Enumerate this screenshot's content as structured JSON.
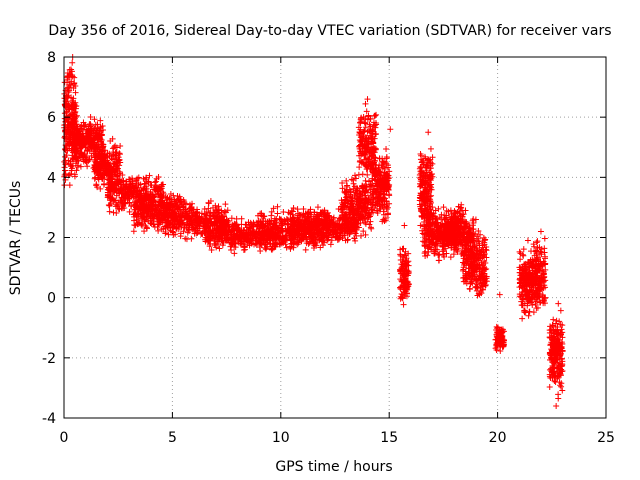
{
  "chart_data": {
    "type": "scatter",
    "title": "Day 356 of 2016, Sidereal Day-to-day VTEC variation (SDTVAR) for receiver vars",
    "xlabel": "GPS time / hours",
    "ylabel": "SDTVAR / TECUs",
    "xlim": [
      0,
      25
    ],
    "ylim": [
      -4,
      8
    ],
    "xticks": [
      0,
      5,
      10,
      15,
      20,
      25
    ],
    "yticks": [
      -4,
      -2,
      0,
      2,
      4,
      6,
      8
    ],
    "xtick_labels": [
      "0",
      "5",
      "10",
      "15",
      "20",
      "25"
    ],
    "ytick_labels": [
      "-4",
      "-2",
      "0",
      "2",
      "4",
      "6",
      "8"
    ],
    "grid": true,
    "marker": "plus",
    "series_color": "#ff0000",
    "series": [
      {
        "name": "SDTVAR",
        "trace": [
          [
            0.0,
            3.4
          ],
          [
            0.05,
            5.5
          ],
          [
            0.1,
            6.8
          ],
          [
            0.2,
            7.1
          ],
          [
            0.3,
            7.4
          ],
          [
            0.4,
            7.8
          ],
          [
            0.5,
            5.5
          ],
          [
            0.6,
            4.5
          ],
          [
            0.8,
            5.2
          ],
          [
            1.0,
            4.8
          ],
          [
            1.2,
            5.5
          ],
          [
            1.4,
            5.2
          ],
          [
            1.6,
            5.0
          ],
          [
            1.8,
            4.6
          ],
          [
            2.0,
            4.2
          ],
          [
            2.2,
            3.8
          ],
          [
            2.5,
            3.7
          ],
          [
            2.8,
            3.5
          ],
          [
            3.0,
            3.6
          ],
          [
            3.3,
            3.4
          ],
          [
            3.6,
            3.2
          ],
          [
            4.0,
            3.0
          ],
          [
            4.2,
            2.6
          ],
          [
            4.5,
            2.8
          ],
          [
            4.8,
            3.0
          ],
          [
            5.0,
            2.9
          ],
          [
            5.3,
            3.1
          ],
          [
            5.6,
            2.8
          ],
          [
            6.0,
            2.6
          ],
          [
            6.3,
            2.5
          ],
          [
            6.6,
            2.4
          ],
          [
            7.0,
            2.2
          ],
          [
            7.3,
            2.4
          ],
          [
            7.6,
            2.0
          ],
          [
            8.0,
            2.2
          ],
          [
            8.3,
            1.9
          ],
          [
            8.6,
            2.1
          ],
          [
            9.0,
            2.2
          ],
          [
            9.3,
            1.8
          ],
          [
            9.6,
            1.9
          ],
          [
            10.0,
            2.1
          ],
          [
            10.3,
            2.3
          ],
          [
            10.6,
            2.0
          ],
          [
            11.0,
            2.3
          ],
          [
            11.3,
            2.1
          ],
          [
            11.6,
            2.4
          ],
          [
            12.0,
            2.6
          ],
          [
            12.3,
            2.4
          ],
          [
            12.6,
            2.2
          ],
          [
            13.0,
            2.5
          ],
          [
            13.3,
            2.7
          ],
          [
            13.6,
            2.6
          ],
          [
            13.9,
            3.2
          ],
          [
            14.0,
            4.0
          ],
          [
            14.1,
            5.6
          ],
          [
            14.2,
            5.2
          ],
          [
            14.4,
            3.8
          ],
          [
            14.6,
            3.2
          ],
          [
            14.8,
            3.6
          ],
          [
            15.0,
            4.2
          ],
          [
            15.7,
            0.5
          ],
          [
            16.6,
            3.3
          ],
          [
            16.8,
            2.6
          ],
          [
            17.0,
            2.3
          ],
          [
            17.2,
            2.4
          ],
          [
            17.5,
            1.8
          ],
          [
            17.8,
            2.2
          ],
          [
            18.0,
            2.6
          ],
          [
            18.3,
            2.8
          ],
          [
            18.6,
            2.2
          ],
          [
            18.8,
            1.4
          ],
          [
            19.0,
            0.6
          ],
          [
            19.1,
            0.4
          ],
          [
            19.3,
            0.5
          ],
          [
            19.5,
            0.7
          ],
          [
            20.1,
            -1.5
          ],
          [
            21.2,
            0.8
          ],
          [
            21.4,
            0.6
          ],
          [
            21.6,
            0.4
          ],
          [
            21.8,
            0.2
          ],
          [
            22.0,
            0.3
          ],
          [
            22.6,
            -1.8
          ],
          [
            22.8,
            -1.2
          ]
        ],
        "clusters": [
          {
            "x": [
              0.0,
              0.6
            ],
            "y": [
              3.2,
              8.0
            ],
            "n": 220
          },
          {
            "x": [
              0.4,
              1.8
            ],
            "y": [
              4.2,
              6.2
            ],
            "n": 240
          },
          {
            "x": [
              1.4,
              2.6
            ],
            "y": [
              3.4,
              5.4
            ],
            "n": 200
          },
          {
            "x": [
              2.0,
              4.6
            ],
            "y": [
              2.6,
              4.3
            ],
            "n": 260
          },
          {
            "x": [
              3.2,
              5.2
            ],
            "y": [
              2.0,
              3.6
            ],
            "n": 200
          },
          {
            "x": [
              4.6,
              7.6
            ],
            "y": [
              1.8,
              3.4
            ],
            "n": 280
          },
          {
            "x": [
              6.5,
              9.8
            ],
            "y": [
              1.4,
              2.8
            ],
            "n": 300
          },
          {
            "x": [
              9.0,
              12.2
            ],
            "y": [
              1.4,
              3.2
            ],
            "n": 300
          },
          {
            "x": [
              10.5,
              13.5
            ],
            "y": [
              1.6,
              3.1
            ],
            "n": 280
          },
          {
            "x": [
              12.8,
              14.2
            ],
            "y": [
              1.8,
              4.4
            ],
            "n": 240
          },
          {
            "x": [
              13.6,
              14.4
            ],
            "y": [
              3.6,
              6.6
            ],
            "n": 180
          },
          {
            "x": [
              14.2,
              15.0
            ],
            "y": [
              2.2,
              5.2
            ],
            "n": 200
          },
          {
            "x": [
              15.5,
              15.9
            ],
            "y": [
              -0.5,
              2.0
            ],
            "n": 110
          },
          {
            "x": [
              16.4,
              17.0
            ],
            "y": [
              1.5,
              5.5
            ],
            "n": 220
          },
          {
            "x": [
              16.6,
              18.2
            ],
            "y": [
              1.0,
              3.2
            ],
            "n": 260
          },
          {
            "x": [
              17.5,
              18.9
            ],
            "y": [
              1.2,
              3.1
            ],
            "n": 220
          },
          {
            "x": [
              18.4,
              19.5
            ],
            "y": [
              -0.1,
              2.6
            ],
            "n": 220
          },
          {
            "x": [
              19.9,
              20.3
            ],
            "y": [
              -1.9,
              -0.8
            ],
            "n": 90
          },
          {
            "x": [
              21.0,
              21.6
            ],
            "y": [
              -1.0,
              1.8
            ],
            "n": 150
          },
          {
            "x": [
              21.6,
              22.2
            ],
            "y": [
              -0.8,
              2.3
            ],
            "n": 160
          },
          {
            "x": [
              22.4,
              23.0
            ],
            "y": [
              -3.6,
              -0.1
            ],
            "n": 230
          }
        ],
        "outliers": [
          [
            15.7,
            2.4
          ],
          [
            16.8,
            5.5
          ],
          [
            18.3,
            3.0
          ],
          [
            19.0,
            2.6
          ],
          [
            20.1,
            0.1
          ],
          [
            21.4,
            1.9
          ],
          [
            22.0,
            2.2
          ],
          [
            22.8,
            -0.2
          ],
          [
            14.0,
            6.6
          ],
          [
            15.05,
            5.6
          ],
          [
            0.4,
            8.0
          ],
          [
            22.7,
            -3.6
          ]
        ]
      }
    ]
  }
}
